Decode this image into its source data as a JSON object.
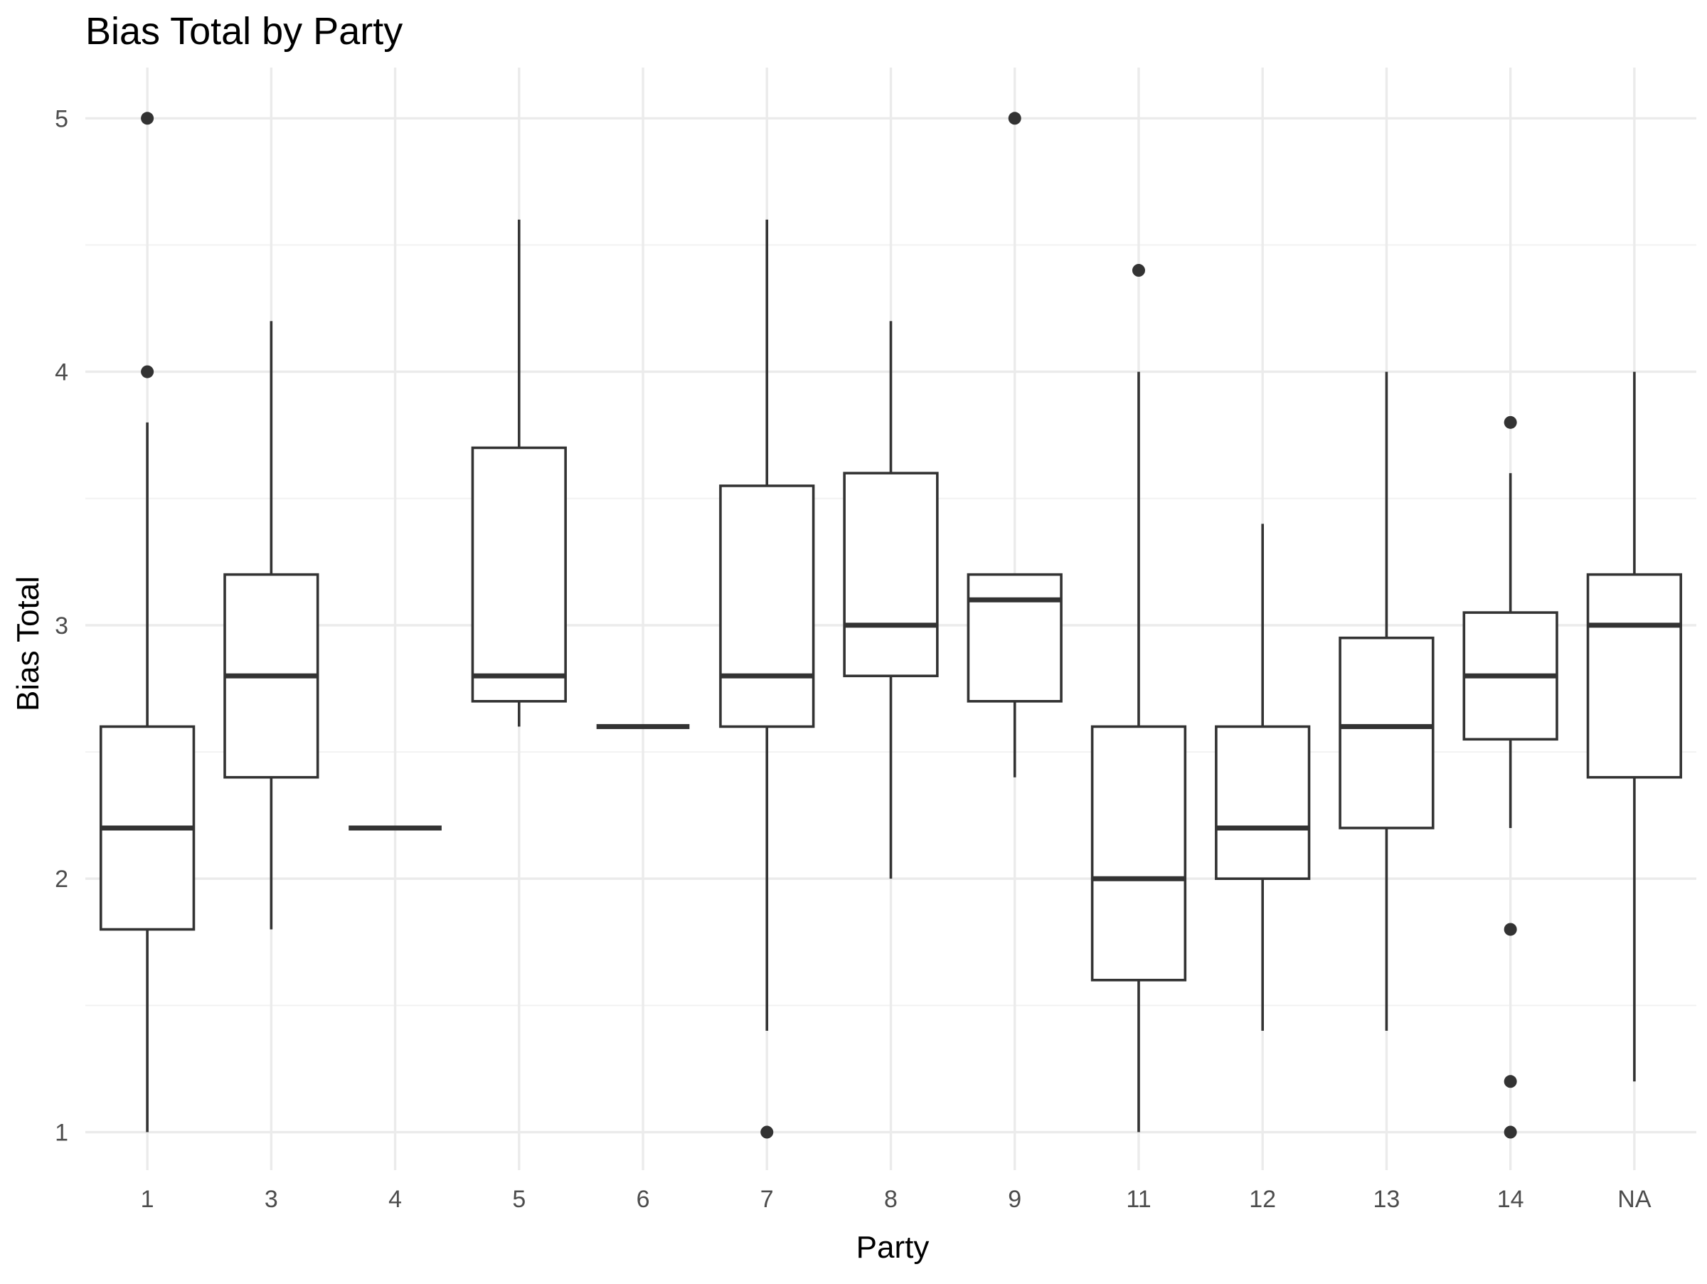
{
  "chart_data": {
    "type": "boxplot",
    "title": "Bias Total by  Party",
    "xlabel": "Party",
    "ylabel": "Bias Total",
    "ylim": [
      0.85,
      5.2
    ],
    "y_ticks": [
      1,
      2,
      3,
      4,
      5
    ],
    "grid": true,
    "legend": "none",
    "colors": {
      "box_stroke": "#333333",
      "box_fill": "#ffffff",
      "grid_major": "#ebebeb",
      "grid_minor": "#f2f2f2",
      "tick_text": "#4d4d4d"
    },
    "categories": [
      "1",
      "3",
      "4",
      "5",
      "6",
      "7",
      "8",
      "9",
      "11",
      "12",
      "13",
      "14",
      "NA"
    ],
    "boxes": [
      {
        "category": "1",
        "whisker_low": 1.0,
        "q1": 1.8,
        "median": 2.2,
        "q3": 2.6,
        "whisker_high": 3.8,
        "outliers": [
          4.0,
          5.0
        ]
      },
      {
        "category": "3",
        "whisker_low": 1.8,
        "q1": 2.4,
        "median": 2.8,
        "q3": 3.2,
        "whisker_high": 4.2,
        "outliers": []
      },
      {
        "category": "4",
        "whisker_low": 2.2,
        "q1": 2.2,
        "median": 2.2,
        "q3": 2.2,
        "whisker_high": 2.2,
        "outliers": []
      },
      {
        "category": "5",
        "whisker_low": 2.6,
        "q1": 2.7,
        "median": 2.8,
        "q3": 3.7,
        "whisker_high": 4.6,
        "outliers": []
      },
      {
        "category": "6",
        "whisker_low": 2.6,
        "q1": 2.6,
        "median": 2.6,
        "q3": 2.6,
        "whisker_high": 2.6,
        "outliers": []
      },
      {
        "category": "7",
        "whisker_low": 1.4,
        "q1": 2.6,
        "median": 2.8,
        "q3": 3.55,
        "whisker_high": 4.6,
        "outliers": [
          1.0
        ]
      },
      {
        "category": "8",
        "whisker_low": 2.0,
        "q1": 2.8,
        "median": 3.0,
        "q3": 3.6,
        "whisker_high": 4.2,
        "outliers": []
      },
      {
        "category": "9",
        "whisker_low": 2.4,
        "q1": 2.7,
        "median": 3.1,
        "q3": 3.2,
        "whisker_high": 3.2,
        "outliers": [
          5.0
        ]
      },
      {
        "category": "11",
        "whisker_low": 1.0,
        "q1": 1.6,
        "median": 2.0,
        "q3": 2.6,
        "whisker_high": 4.0,
        "outliers": [
          4.4
        ]
      },
      {
        "category": "12",
        "whisker_low": 1.4,
        "q1": 2.0,
        "median": 2.2,
        "q3": 2.6,
        "whisker_high": 3.4,
        "outliers": []
      },
      {
        "category": "13",
        "whisker_low": 1.4,
        "q1": 2.2,
        "median": 2.6,
        "q3": 2.95,
        "whisker_high": 4.0,
        "outliers": []
      },
      {
        "category": "14",
        "whisker_low": 2.2,
        "q1": 2.55,
        "median": 2.8,
        "q3": 3.05,
        "whisker_high": 3.6,
        "outliers": [
          3.8,
          1.8,
          1.2,
          1.0
        ]
      },
      {
        "category": "NA",
        "whisker_low": 1.2,
        "q1": 2.4,
        "median": 3.0,
        "q3": 3.2,
        "whisker_high": 4.0,
        "outliers": []
      }
    ]
  }
}
